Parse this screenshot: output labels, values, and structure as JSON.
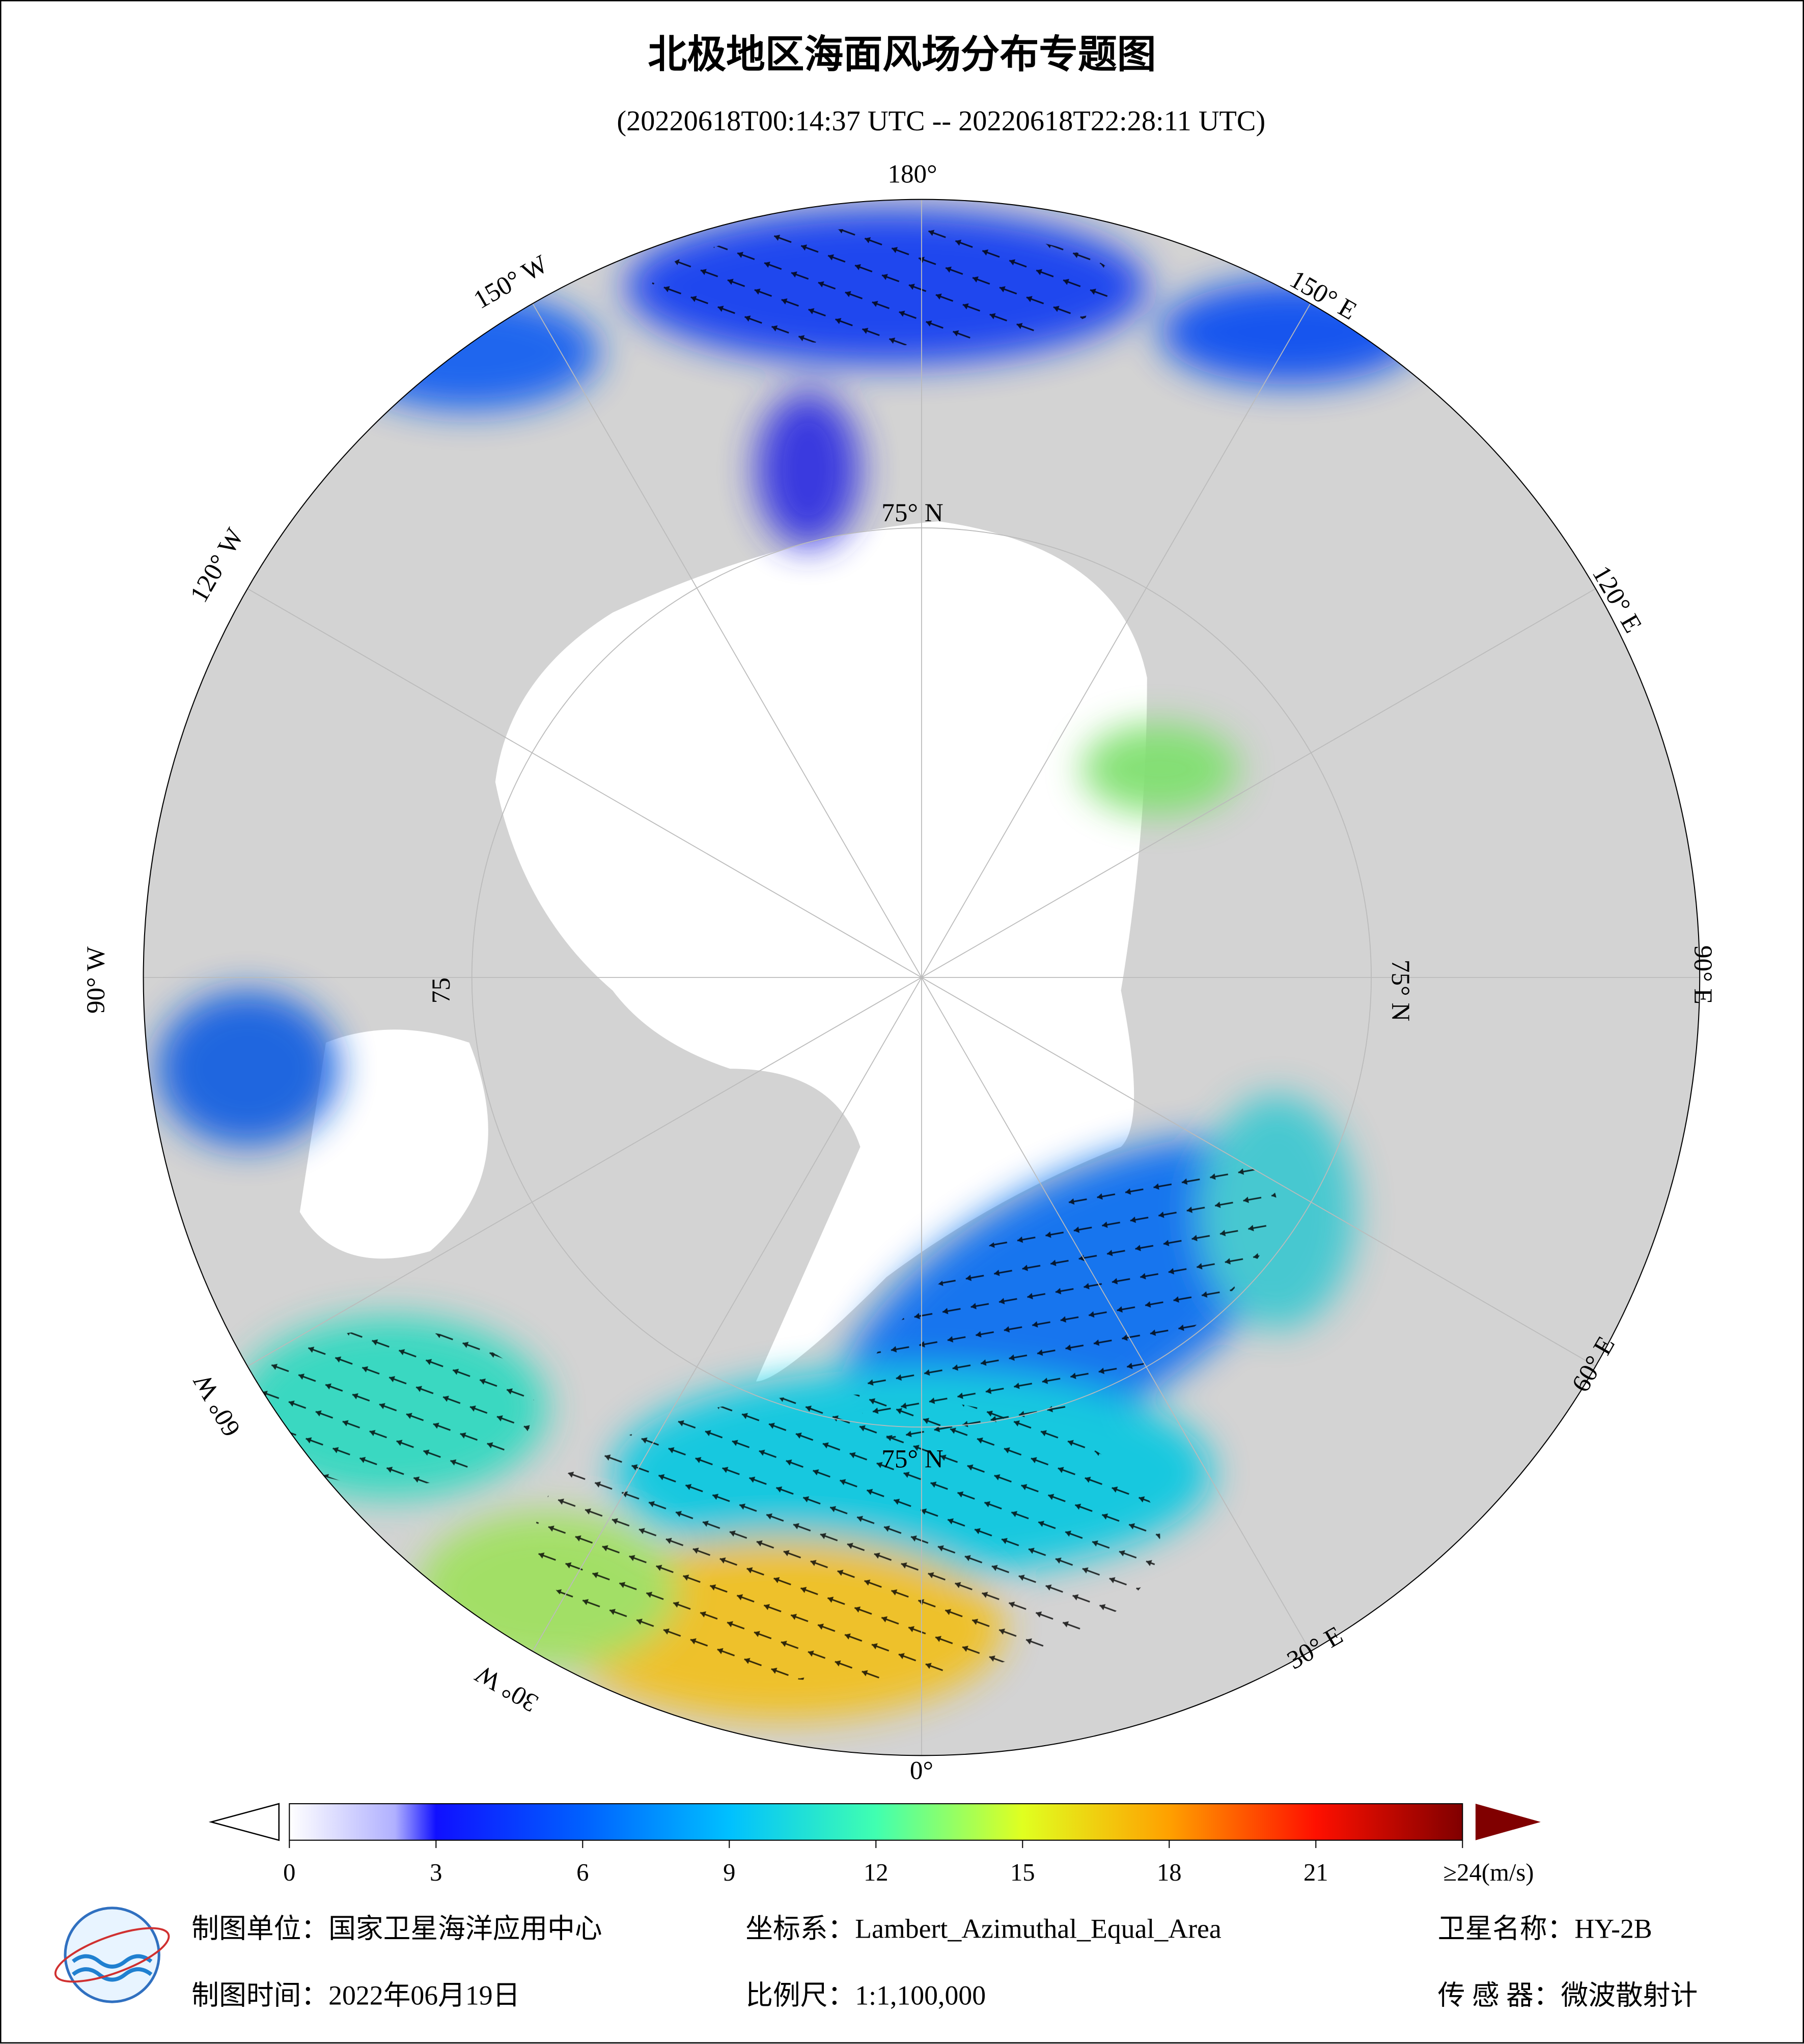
{
  "title": "北极地区海面风场分布专题图",
  "subtitle": "(20220618T00:14:37 UTC -- 20220618T22:28:11 UTC)",
  "graticule_labels": [
    "180°",
    "150° W",
    "120° W",
    "90° W",
    "60° W",
    "30° W",
    "0°",
    "30° E",
    "60° E",
    "90° E",
    "120° E",
    "150° E",
    "75° N",
    "75° N",
    "75° N",
    "75"
  ],
  "colorbar": {
    "range": [
      0,
      24
    ],
    "ticks": [
      0,
      3,
      6,
      9,
      12,
      15,
      18,
      21,
      {
        "value": 24,
        "label": "≥24(m/s)"
      }
    ]
  },
  "footer": {
    "unit": "制图单位：国家卫星海洋应用中心",
    "projection": "坐标系：Lambert_Azimuthal_Equal_Area",
    "satellite": "卫星名称：HY-2B",
    "date": "制图时间：2022年06月19日",
    "scale": "比例尺：1:1,100,000",
    "sensor": "传 感 器：微波散射计"
  }
}
